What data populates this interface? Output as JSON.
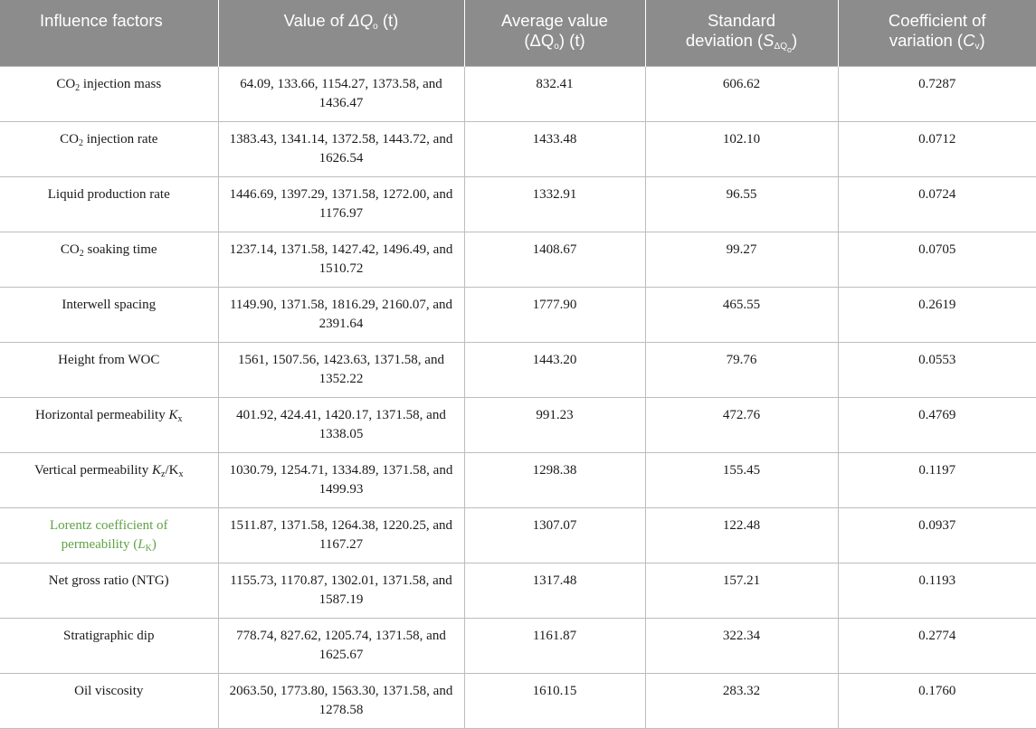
{
  "header": {
    "col1": "Influence factors",
    "col2_prefix": "Value of ",
    "col2_delta": "ΔQ",
    "col2_sub": "o",
    "col2_unit": " (t)",
    "col3_line1": "Average value",
    "col3_open": "(ΔQ",
    "col3_sub": "o",
    "col3_close": ") (t)",
    "col4_line1": "Standard",
    "col4_prefix": "deviation (",
    "col4_S": "S",
    "col4_sub": "ΔQ",
    "col4_subsub": "o",
    "col4_close": ")",
    "col5_line1": "Coefficient of",
    "col5_prefix": "variation (",
    "col5_C": "C",
    "col5_sub": "v",
    "col5_close": ")"
  },
  "rows": [
    {
      "f1": "CO",
      "f1sub": "2",
      "f1rest": " injection mass",
      "values": "64.09, 133.66, 1154.27, 1373.58, and 1436.47",
      "avg": "832.41",
      "sd": "606.62",
      "cv": "0.7287"
    },
    {
      "f1": "CO",
      "f1sub": "2",
      "f1rest": " injection rate",
      "values": "1383.43, 1341.14, 1372.58, 1443.72, and 1626.54",
      "avg": "1433.48",
      "sd": "102.10",
      "cv": "0.0712"
    },
    {
      "label": "Liquid production rate",
      "values": "1446.69, 1397.29, 1371.58, 1272.00, and 1176.97",
      "avg": "1332.91",
      "sd": "96.55",
      "cv": "0.0724"
    },
    {
      "f1": "CO",
      "f1sub": "2",
      "f1rest": " soaking time",
      "values": "1237.14, 1371.58, 1427.42, 1496.49, and 1510.72",
      "avg": "1408.67",
      "sd": "99.27",
      "cv": "0.0705"
    },
    {
      "label": "Interwell spacing",
      "values": "1149.90, 1371.58, 1816.29, 2160.07, and 2391.64",
      "avg": "1777.90",
      "sd": "465.55",
      "cv": "0.2619"
    },
    {
      "label": "Height from WOC",
      "values": "1561, 1507.56, 1423.63, 1371.58, and 1352.22",
      "avg": "1443.20",
      "sd": "79.76",
      "cv": "0.0553"
    },
    {
      "h_text": "Horizontal permeability ",
      "h_K": "K",
      "h_sub": "x",
      "values": "401.92, 424.41, 1420.17, 1371.58, and 1338.05",
      "avg": "991.23",
      "sd": "472.76",
      "cv": "0.4769"
    },
    {
      "v_text": "Vertical permeability ",
      "v_K": "K",
      "v_sub1": "z",
      "v_slash": "/K",
      "v_sub2": "x",
      "values": "1030.79, 1254.71, 1334.89, 1371.58, and 1499.93",
      "avg": "1298.38",
      "sd": "155.45",
      "cv": "0.1197"
    },
    {
      "l_line1": "Lorentz coefficient of",
      "l_line2": "permeability (",
      "l_L": "L",
      "l_sub": "K",
      "l_close": ")",
      "values": "1511.87, 1371.58, 1264.38, 1220.25, and 1167.27",
      "avg": "1307.07",
      "sd": "122.48",
      "cv": "0.0937"
    },
    {
      "label": "Net gross ratio (NTG)",
      "values": "1155.73, 1170.87, 1302.01, 1371.58, and 1587.19",
      "avg": "1317.48",
      "sd": "157.21",
      "cv": "0.1193"
    },
    {
      "label": "Stratigraphic dip",
      "values": "778.74, 827.62, 1205.74, 1371.58, and 1625.67",
      "avg": "1161.87",
      "sd": "322.34",
      "cv": "0.2774"
    },
    {
      "label": "Oil viscosity",
      "values": "2063.50, 1773.80, 1563.30, 1371.58, and 1278.58",
      "avg": "1610.15",
      "sd": "283.32",
      "cv": "0.1760"
    }
  ],
  "colors": {
    "header_bg": "#8c8c8c",
    "header_text": "#ffffff",
    "highlight_text": "#5fa343",
    "border": "#bdbdbd"
  }
}
